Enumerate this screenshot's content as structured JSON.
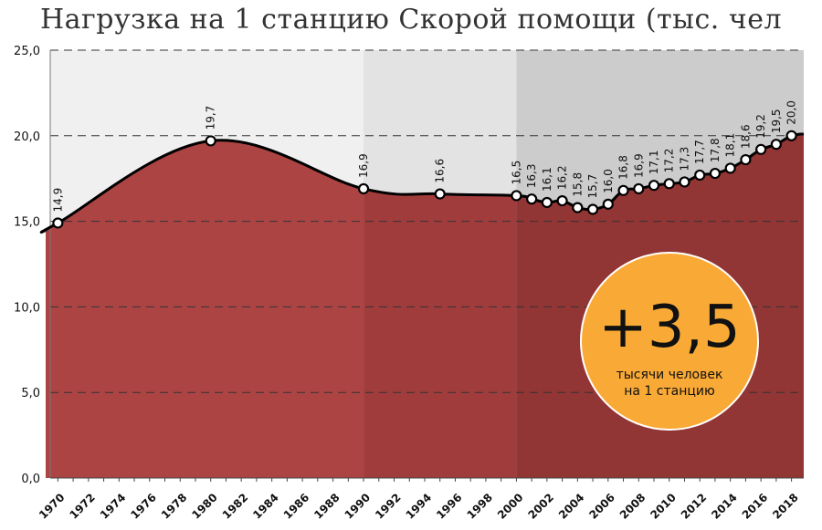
{
  "chart_data": {
    "type": "area",
    "title": "Нагрузка на 1 станцию Скорой помощи (тыс. чел",
    "xlabel": "",
    "ylabel": "",
    "ylim": [
      0,
      25
    ],
    "yticks": [
      "0,0",
      "5,0",
      "10,0",
      "15,0",
      "20,0",
      "25,0"
    ],
    "xticks": [
      "1970",
      "1972",
      "1974",
      "1976",
      "1978",
      "1980",
      "1982",
      "1984",
      "1986",
      "1988",
      "1990",
      "1992",
      "1994",
      "1996",
      "1998",
      "2000",
      "2002",
      "2004",
      "2006",
      "2008",
      "2010",
      "2012",
      "2014",
      "2016",
      "2018"
    ],
    "grid": true,
    "legend": "none",
    "background_bands": [
      {
        "from": 1970,
        "to": 1990,
        "color": "#f0f0f0"
      },
      {
        "from": 1990,
        "to": 2000,
        "color": "#e3e3e3"
      },
      {
        "from": 2000,
        "to": 2019,
        "color": "#cccccc"
      }
    ],
    "fill_colors": [
      "#ad4444",
      "#a13c3c",
      "#923535"
    ],
    "series": [
      {
        "x": [
          1970,
          1980,
          1990,
          1995,
          2000,
          2001,
          2002,
          2003,
          2004,
          2005,
          2006,
          2007,
          2008,
          2009,
          2010,
          2011,
          2012,
          2013,
          2014,
          2015,
          2016,
          2017,
          2018
        ],
        "values": [
          14.9,
          19.7,
          16.9,
          16.6,
          16.5,
          16.3,
          16.1,
          16.2,
          15.8,
          15.7,
          16.0,
          16.8,
          16.9,
          17.1,
          17.2,
          17.3,
          17.7,
          17.8,
          18.1,
          18.6,
          19.2,
          19.5,
          20.0
        ],
        "labels": [
          "14,9",
          "19,7",
          "16,9",
          "16,6",
          "16,5",
          "16,3",
          "16,1",
          "16,2",
          "15,8",
          "15,7",
          "16,0",
          "16,8",
          "16,9",
          "17,1",
          "17,2",
          "17,3",
          "17,7",
          "17,8",
          "18,1",
          "18,6",
          "19,2",
          "19,5",
          "20,0"
        ]
      }
    ]
  },
  "badge": {
    "value": "+3,5",
    "line1": "тысячи человек",
    "line2": "на 1 станцию",
    "color": "#f9a935"
  }
}
